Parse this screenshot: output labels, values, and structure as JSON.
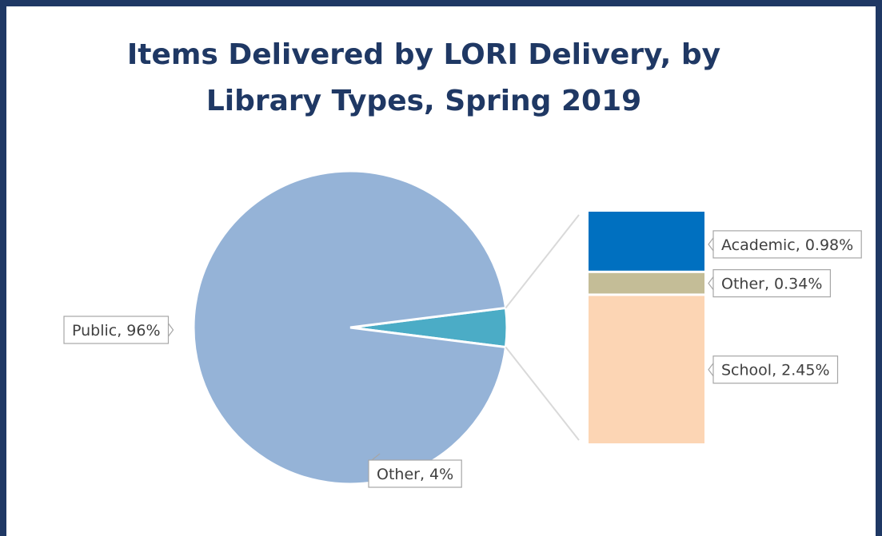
{
  "chart_data": {
    "type": "pie",
    "title": "Items Delivered by LORI Delivery, by Library Types, Spring 2019",
    "pie": {
      "slices": [
        {
          "label": "Public, 96%",
          "value": 96,
          "color": "#95b3d7"
        },
        {
          "label": "Other, 4%",
          "value": 4,
          "color": "#4bacc6"
        }
      ]
    },
    "breakout_of": "Other, 4%",
    "bar": {
      "segments": [
        {
          "label": "Academic, 0.98%",
          "value": 0.98,
          "color": "#0070c0"
        },
        {
          "label": "Other, 0.34%",
          "value": 0.34,
          "color": "#c4bd97"
        },
        {
          "label": "School, 2.45%",
          "value": 2.45,
          "color": "#fcd5b4"
        }
      ]
    },
    "legend": "none"
  }
}
